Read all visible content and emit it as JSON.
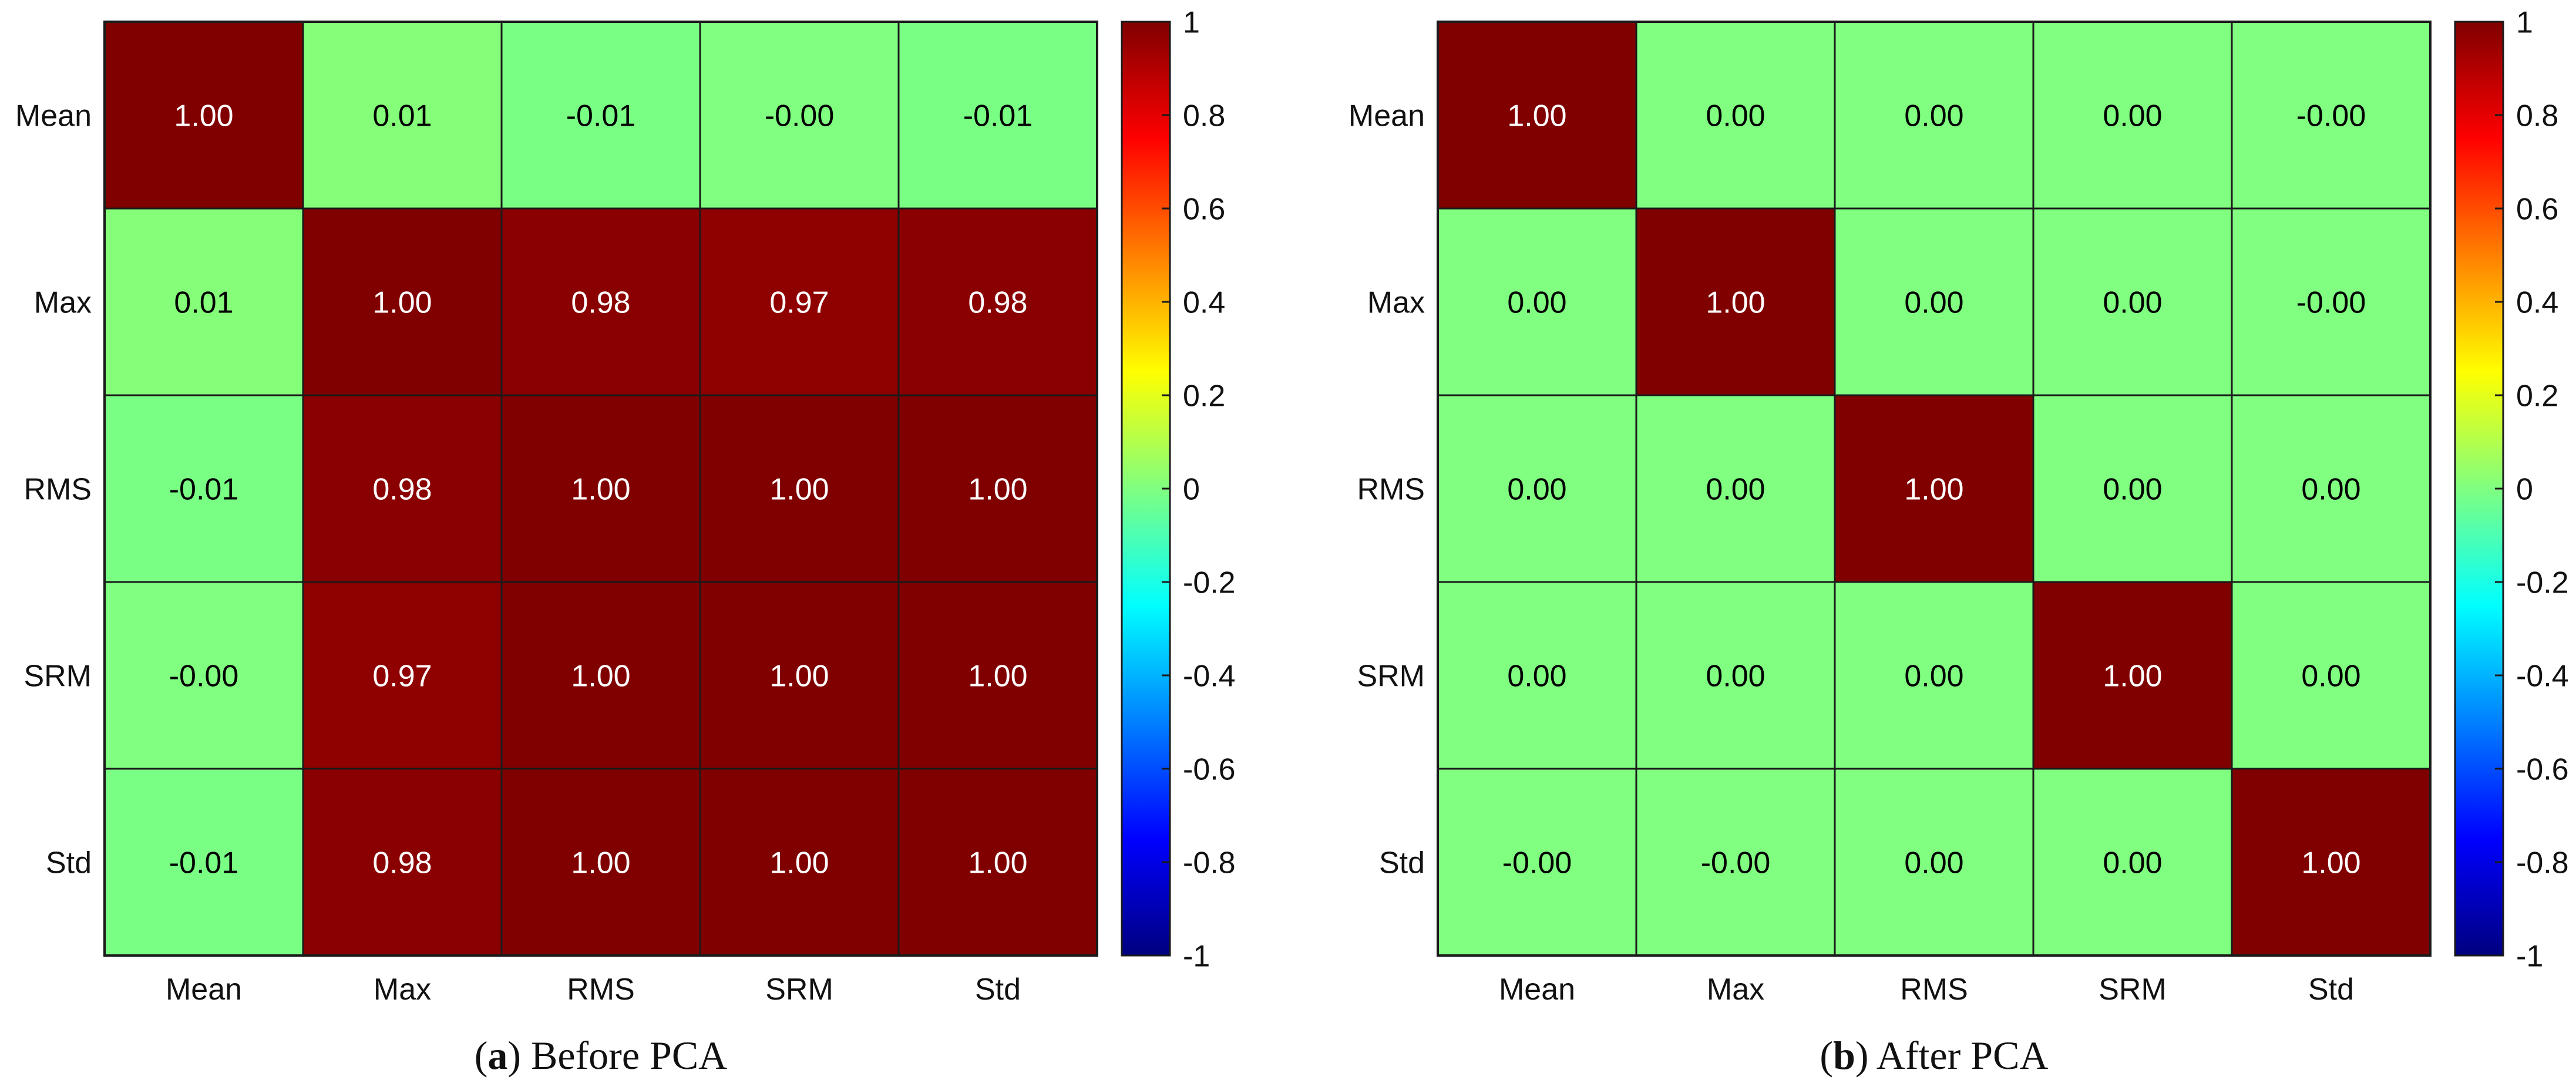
{
  "chart_data": [
    {
      "type": "heatmap",
      "title": "",
      "caption_label": "a",
      "caption_text": "Before PCA",
      "xlabel": "",
      "ylabel": "",
      "x_categories": [
        "Mean",
        "Max",
        "RMS",
        "SRM",
        "Std"
      ],
      "y_categories": [
        "Mean",
        "Max",
        "RMS",
        "SRM",
        "Std"
      ],
      "values": [
        [
          1.0,
          0.01,
          -0.01,
          -0.0,
          -0.01
        ],
        [
          0.01,
          1.0,
          0.98,
          0.97,
          0.98
        ],
        [
          -0.01,
          0.98,
          1.0,
          1.0,
          1.0
        ],
        [
          -0.0,
          0.97,
          1.0,
          1.0,
          1.0
        ],
        [
          -0.01,
          0.98,
          1.0,
          1.0,
          1.0
        ]
      ],
      "value_labels": [
        [
          "1.00",
          "0.01",
          "-0.01",
          "-0.00",
          "-0.01"
        ],
        [
          "0.01",
          "1.00",
          "0.98",
          "0.97",
          "0.98"
        ],
        [
          "-0.01",
          "0.98",
          "1.00",
          "1.00",
          "1.00"
        ],
        [
          "-0.00",
          "0.97",
          "1.00",
          "1.00",
          "1.00"
        ],
        [
          "-0.01",
          "0.98",
          "1.00",
          "1.00",
          "1.00"
        ]
      ],
      "colorbar": {
        "range": [
          -1,
          1
        ],
        "colormap": "jet",
        "ticks": [
          "1",
          "0.8",
          "0.6",
          "0.4",
          "0.2",
          "0",
          "-0.2",
          "-0.4",
          "-0.6",
          "-0.8",
          "-1"
        ]
      },
      "grid": true
    },
    {
      "type": "heatmap",
      "title": "",
      "caption_label": "b",
      "caption_text": "After PCA",
      "xlabel": "",
      "ylabel": "",
      "x_categories": [
        "Mean",
        "Max",
        "RMS",
        "SRM",
        "Std"
      ],
      "y_categories": [
        "Mean",
        "Max",
        "RMS",
        "SRM",
        "Std"
      ],
      "values": [
        [
          1.0,
          0.0,
          0.0,
          0.0,
          -0.0
        ],
        [
          0.0,
          1.0,
          0.0,
          0.0,
          -0.0
        ],
        [
          0.0,
          0.0,
          1.0,
          0.0,
          0.0
        ],
        [
          0.0,
          0.0,
          0.0,
          1.0,
          0.0
        ],
        [
          -0.0,
          -0.0,
          0.0,
          0.0,
          1.0
        ]
      ],
      "value_labels": [
        [
          "1.00",
          "0.00",
          "0.00",
          "0.00",
          "-0.00"
        ],
        [
          "0.00",
          "1.00",
          "0.00",
          "0.00",
          "-0.00"
        ],
        [
          "0.00",
          "0.00",
          "1.00",
          "0.00",
          "0.00"
        ],
        [
          "0.00",
          "0.00",
          "0.00",
          "1.00",
          "0.00"
        ],
        [
          "-0.00",
          "-0.00",
          "0.00",
          "0.00",
          "1.00"
        ]
      ],
      "colorbar": {
        "range": [
          -1,
          1
        ],
        "colormap": "jet",
        "ticks": [
          "1",
          "0.8",
          "0.6",
          "0.4",
          "0.2",
          "0",
          "-0.2",
          "-0.4",
          "-0.6",
          "-0.8",
          "-1"
        ]
      },
      "grid": true
    }
  ]
}
